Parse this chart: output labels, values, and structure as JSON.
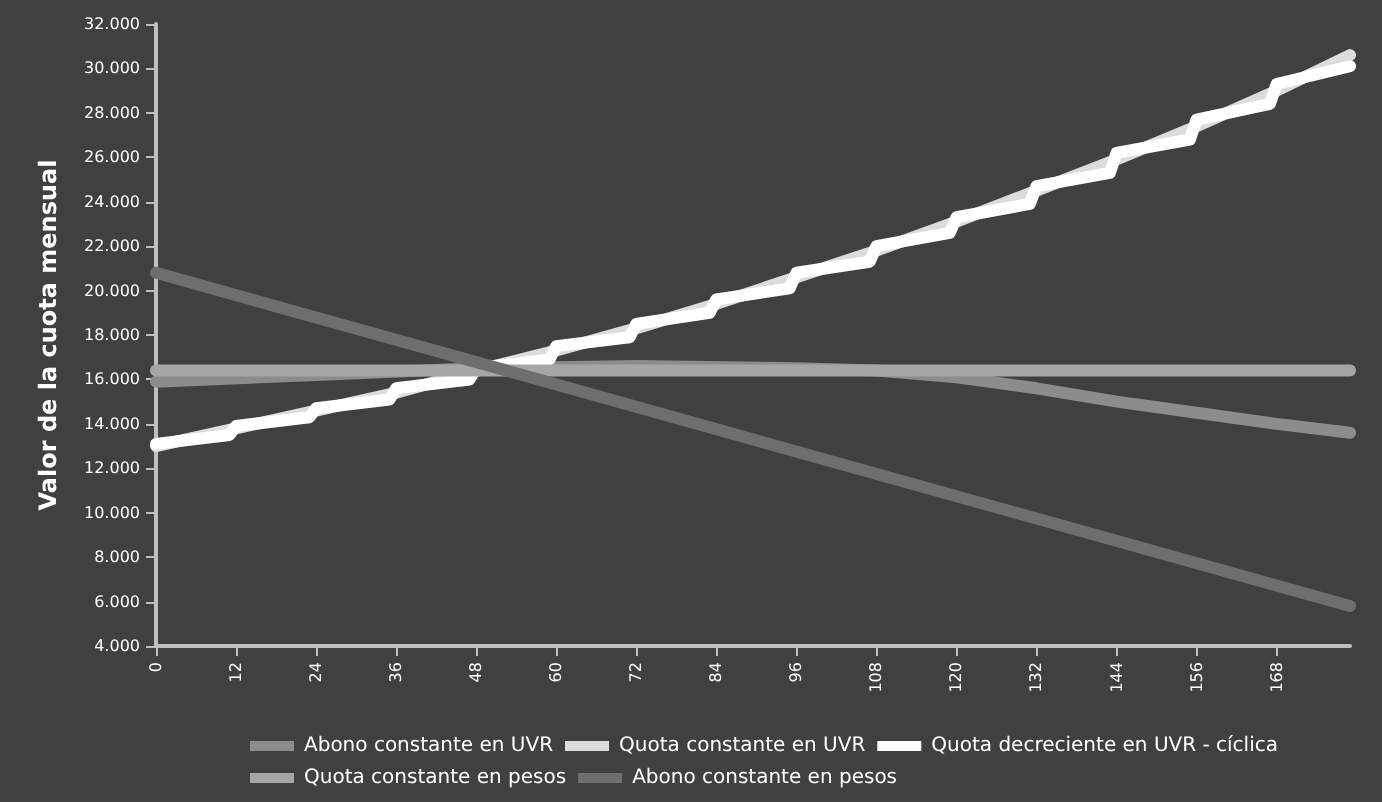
{
  "chart_data": {
    "type": "line",
    "ylabel": "Valor de la cuota mensual",
    "xlim": [
      0,
      179
    ],
    "xticks": [
      0,
      12,
      24,
      36,
      48,
      60,
      72,
      84,
      96,
      108,
      120,
      132,
      144,
      156,
      168
    ],
    "ylim": [
      4000,
      32000
    ],
    "yticks": [
      {
        "value": 4000,
        "label": "4.000"
      },
      {
        "value": 6000,
        "label": "6.000"
      },
      {
        "value": 8000,
        "label": "8.000"
      },
      {
        "value": 10000,
        "label": "10.000"
      },
      {
        "value": 12000,
        "label": "12.000"
      },
      {
        "value": 14000,
        "label": "14.000"
      },
      {
        "value": 16000,
        "label": "16.000"
      },
      {
        "value": 18000,
        "label": "18.000"
      },
      {
        "value": 20000,
        "label": "20.000"
      },
      {
        "value": 22000,
        "label": "22.000"
      },
      {
        "value": 24000,
        "label": "24.000"
      },
      {
        "value": 26000,
        "label": "26.000"
      },
      {
        "value": 28000,
        "label": "28.000"
      },
      {
        "value": 30000,
        "label": "30.000"
      },
      {
        "value": 32000,
        "label": "32.000"
      }
    ],
    "grid": false,
    "legend": "bottom",
    "marker": "none",
    "line_style": "solid",
    "series": [
      {
        "name": "Abono constante en UVR",
        "color": "#8c8c8c",
        "x": [
          0,
          24,
          48,
          72,
          96,
          108,
          120,
          132,
          144,
          156,
          168,
          179
        ],
        "values": [
          15900,
          16200,
          16500,
          16600,
          16500,
          16400,
          16100,
          15600,
          15000,
          14500,
          14000,
          13600
        ]
      },
      {
        "name": "Quota constante en UVR",
        "color": "#dcdcdc",
        "x": [
          0,
          12,
          24,
          36,
          48,
          60,
          72,
          84,
          96,
          108,
          120,
          132,
          144,
          156,
          168,
          179
        ],
        "values": [
          13000,
          13800,
          14600,
          15400,
          16400,
          17300,
          18300,
          19400,
          20600,
          21800,
          23100,
          24500,
          25900,
          27400,
          29000,
          30600
        ]
      },
      {
        "name": "Quota decreciente en UVR - cíclica",
        "color": "#ffffff",
        "x": [
          0,
          11,
          12,
          23,
          24,
          35,
          36,
          47,
          48,
          59,
          60,
          71,
          72,
          83,
          84,
          95,
          96,
          107,
          108,
          119,
          120,
          131,
          132,
          143,
          144,
          155,
          156,
          167,
          168,
          179
        ],
        "values": [
          13100,
          13500,
          13900,
          14300,
          14700,
          15100,
          15600,
          16000,
          16500,
          16900,
          17500,
          17900,
          18500,
          19000,
          19600,
          20100,
          20800,
          21300,
          22000,
          22600,
          23300,
          23900,
          24700,
          25300,
          26200,
          26800,
          27700,
          28400,
          29300,
          30100
        ]
      },
      {
        "name": "Quota constante en pesos",
        "color": "#a6a6a6",
        "x": [
          0,
          179
        ],
        "values": [
          16400,
          16400
        ]
      },
      {
        "name": "Abono constante en pesos",
        "color": "#6e6e6e",
        "x": [
          0,
          179
        ],
        "values": [
          20800,
          5800
        ]
      }
    ]
  }
}
